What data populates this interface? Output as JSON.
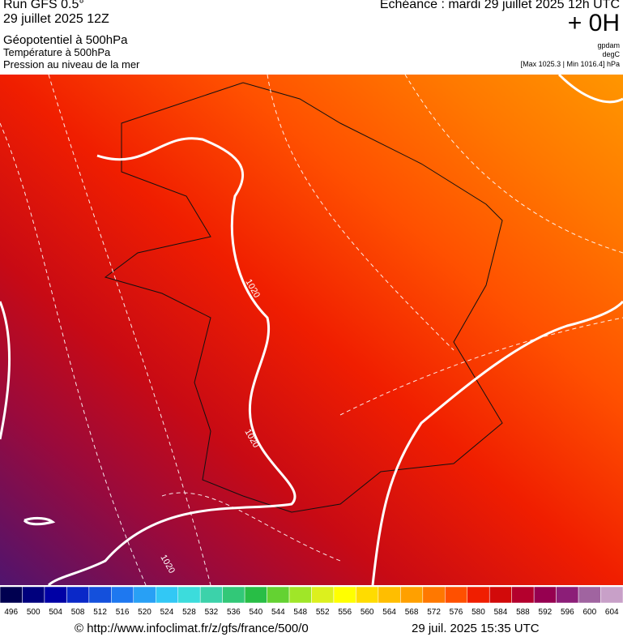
{
  "header": {
    "run": "Run GFS 0.5°",
    "date": "29 juillet 2025 12Z",
    "field1": "Géopotentiel à 500hPa",
    "field2": "Température à 500hPa",
    "field3": "Pression au niveau de la mer",
    "echeance": "Echéance : mardi 29 juillet 2025 12h UTC",
    "offset": "+ 0H",
    "unit1": "gpdam",
    "unit2": "degC",
    "pressure_range": "[Max 1025.3 | Min 1016.4] hPa"
  },
  "map": {
    "isobar_labels": [
      "1020",
      "1020",
      "1020"
    ]
  },
  "colorbar": {
    "values": [
      496,
      500,
      504,
      508,
      512,
      516,
      520,
      524,
      528,
      532,
      536,
      540,
      544,
      548,
      552,
      556,
      560,
      564,
      568,
      572,
      576,
      580,
      584,
      588,
      592,
      596,
      600,
      604
    ],
    "colors": [
      "#000050",
      "#00007d",
      "#0000a5",
      "#0a28c8",
      "#1450dc",
      "#1e78f0",
      "#28a0f5",
      "#32c8f5",
      "#3cdcdc",
      "#3cd2aa",
      "#32c878",
      "#28be46",
      "#64d232",
      "#a0e628",
      "#dcf01e",
      "#ffff00",
      "#ffdc00",
      "#ffbe00",
      "#ffa000",
      "#ff7800",
      "#ff5000",
      "#f01e00",
      "#d20a0a",
      "#b4002d",
      "#960050",
      "#8c1e78",
      "#a064a0",
      "#c8a0c8"
    ]
  },
  "footer": {
    "url": "© http://www.infoclimat.fr/z/gfs/france/500/0",
    "timestamp": "29 juil. 2025 15:35 UTC"
  }
}
